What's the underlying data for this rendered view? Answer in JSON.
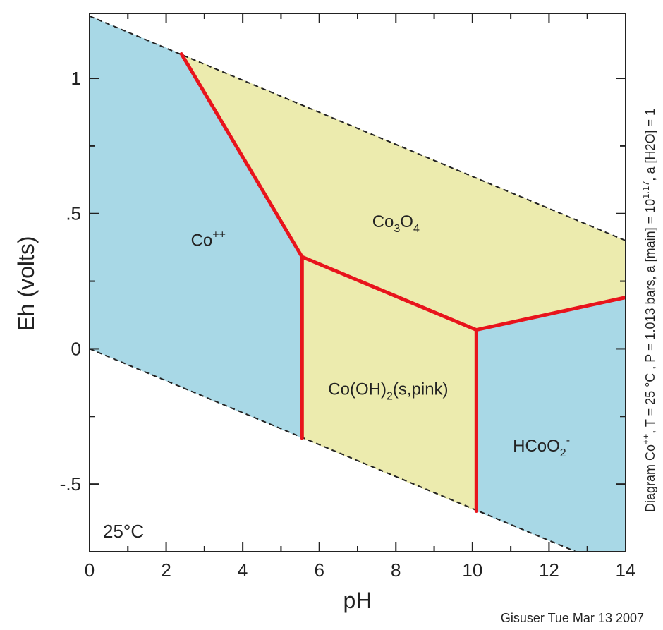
{
  "chart_data": {
    "type": "area",
    "title": "",
    "xlabel": "pH",
    "ylabel": "Eh (volts)",
    "xlim": [
      0,
      14
    ],
    "ylim": [
      -0.75,
      1.24
    ],
    "x_ticks": [
      0,
      2,
      4,
      6,
      8,
      10,
      12,
      14
    ],
    "x_tick_labels": [
      "0",
      "2",
      "4",
      "6",
      "8",
      "10",
      "12",
      "14"
    ],
    "y_ticks": [
      -0.5,
      0,
      0.5,
      1
    ],
    "y_tick_labels": [
      "-.5",
      "0",
      ".5",
      "1"
    ],
    "grid": false,
    "temperature_label": "25°C",
    "side_note": {
      "pre": "Diagram Co",
      "sup1": "++",
      "mid": ", T = 25 °C , P = 1.013 bars, a [main] = 10",
      "sup2": "1.17",
      "post": ", a [H2O] = 1"
    },
    "credit": "Gisuser Tue Mar 13 2007",
    "colors": {
      "aqueous": "#a8d8e6",
      "solid": "#ecebae",
      "boundary": "#e8141c",
      "water_limit": "#222222"
    },
    "water_stability_lines": {
      "upper": [
        [
          0,
          1.23
        ],
        [
          14,
          0.4
        ]
      ],
      "lower": [
        [
          0,
          0.0
        ],
        [
          12.7,
          -0.75
        ]
      ]
    },
    "regions": [
      {
        "name": "Co++",
        "phase": "aqueous",
        "label": {
          "base": "Co",
          "sup": "++",
          "sub": ""
        },
        "label_at": [
          3.1,
          0.38
        ],
        "polygon": [
          [
            0,
            1.23
          ],
          [
            2.4,
            1.09
          ],
          [
            5.55,
            0.34
          ],
          [
            5.55,
            -0.33
          ],
          [
            0,
            0.0
          ]
        ]
      },
      {
        "name": "Co3O4",
        "phase": "solid",
        "label": {
          "base": "Co",
          "sub": "3",
          "base2": "O",
          "sub2": "4"
        },
        "label_at": [
          8.0,
          0.45
        ],
        "polygon": [
          [
            2.4,
            1.09
          ],
          [
            14,
            0.4
          ],
          [
            14,
            0.19
          ],
          [
            10.1,
            0.07
          ],
          [
            5.55,
            0.34
          ]
        ]
      },
      {
        "name": "Co(OH)2(s,pink)",
        "phase": "solid",
        "label": {
          "base": "Co(OH)",
          "sub": "2",
          "post": "(s,pink)"
        },
        "label_at": [
          7.8,
          -0.17
        ],
        "polygon": [
          [
            5.55,
            0.34
          ],
          [
            10.1,
            0.07
          ],
          [
            10.1,
            -0.6
          ],
          [
            5.55,
            -0.33
          ]
        ]
      },
      {
        "name": "HCoO2-",
        "phase": "aqueous",
        "label": {
          "base": "HCoO",
          "sub": "2",
          "sup": "-"
        },
        "label_at": [
          11.8,
          -0.38
        ],
        "polygon": [
          [
            10.1,
            0.07
          ],
          [
            14,
            0.19
          ],
          [
            14,
            -0.75
          ],
          [
            12.7,
            -0.75
          ],
          [
            10.1,
            -0.6
          ]
        ]
      }
    ],
    "boundaries": [
      [
        [
          2.4,
          1.09
        ],
        [
          5.55,
          0.34
        ]
      ],
      [
        [
          5.55,
          0.34
        ],
        [
          5.55,
          -0.33
        ]
      ],
      [
        [
          5.55,
          0.34
        ],
        [
          10.1,
          0.07
        ]
      ],
      [
        [
          10.1,
          0.07
        ],
        [
          10.1,
          -0.6
        ]
      ],
      [
        [
          10.1,
          0.07
        ],
        [
          14,
          0.19
        ]
      ]
    ]
  }
}
